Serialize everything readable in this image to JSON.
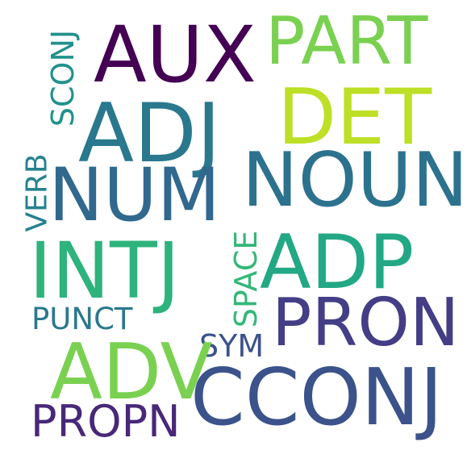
{
  "words": [
    {
      "text": "AUX",
      "color": "#440154"
    },
    {
      "text": "PART",
      "color": "#7ad151"
    },
    {
      "text": "SCONJ",
      "color": "#21918c"
    },
    {
      "text": "ADJ",
      "color": "#2a788e"
    },
    {
      "text": "DET",
      "color": "#bddf26"
    },
    {
      "text": "NUM",
      "color": "#31688e"
    },
    {
      "text": "NOUN",
      "color": "#2c728e"
    },
    {
      "text": "VERB",
      "color": "#26828e"
    },
    {
      "text": "INTJ",
      "color": "#2eb37c"
    },
    {
      "text": "ADP",
      "color": "#22a884"
    },
    {
      "text": "SPACE",
      "color": "#35b779"
    },
    {
      "text": "PUNCT",
      "color": "#2a788e"
    },
    {
      "text": "PRON",
      "color": "#433e85"
    },
    {
      "text": "SYM",
      "color": "#3b528b"
    },
    {
      "text": "ADV",
      "color": "#7ad151"
    },
    {
      "text": "CCONJ",
      "color": "#3b528b"
    },
    {
      "text": "PROPN",
      "color": "#482878"
    }
  ]
}
